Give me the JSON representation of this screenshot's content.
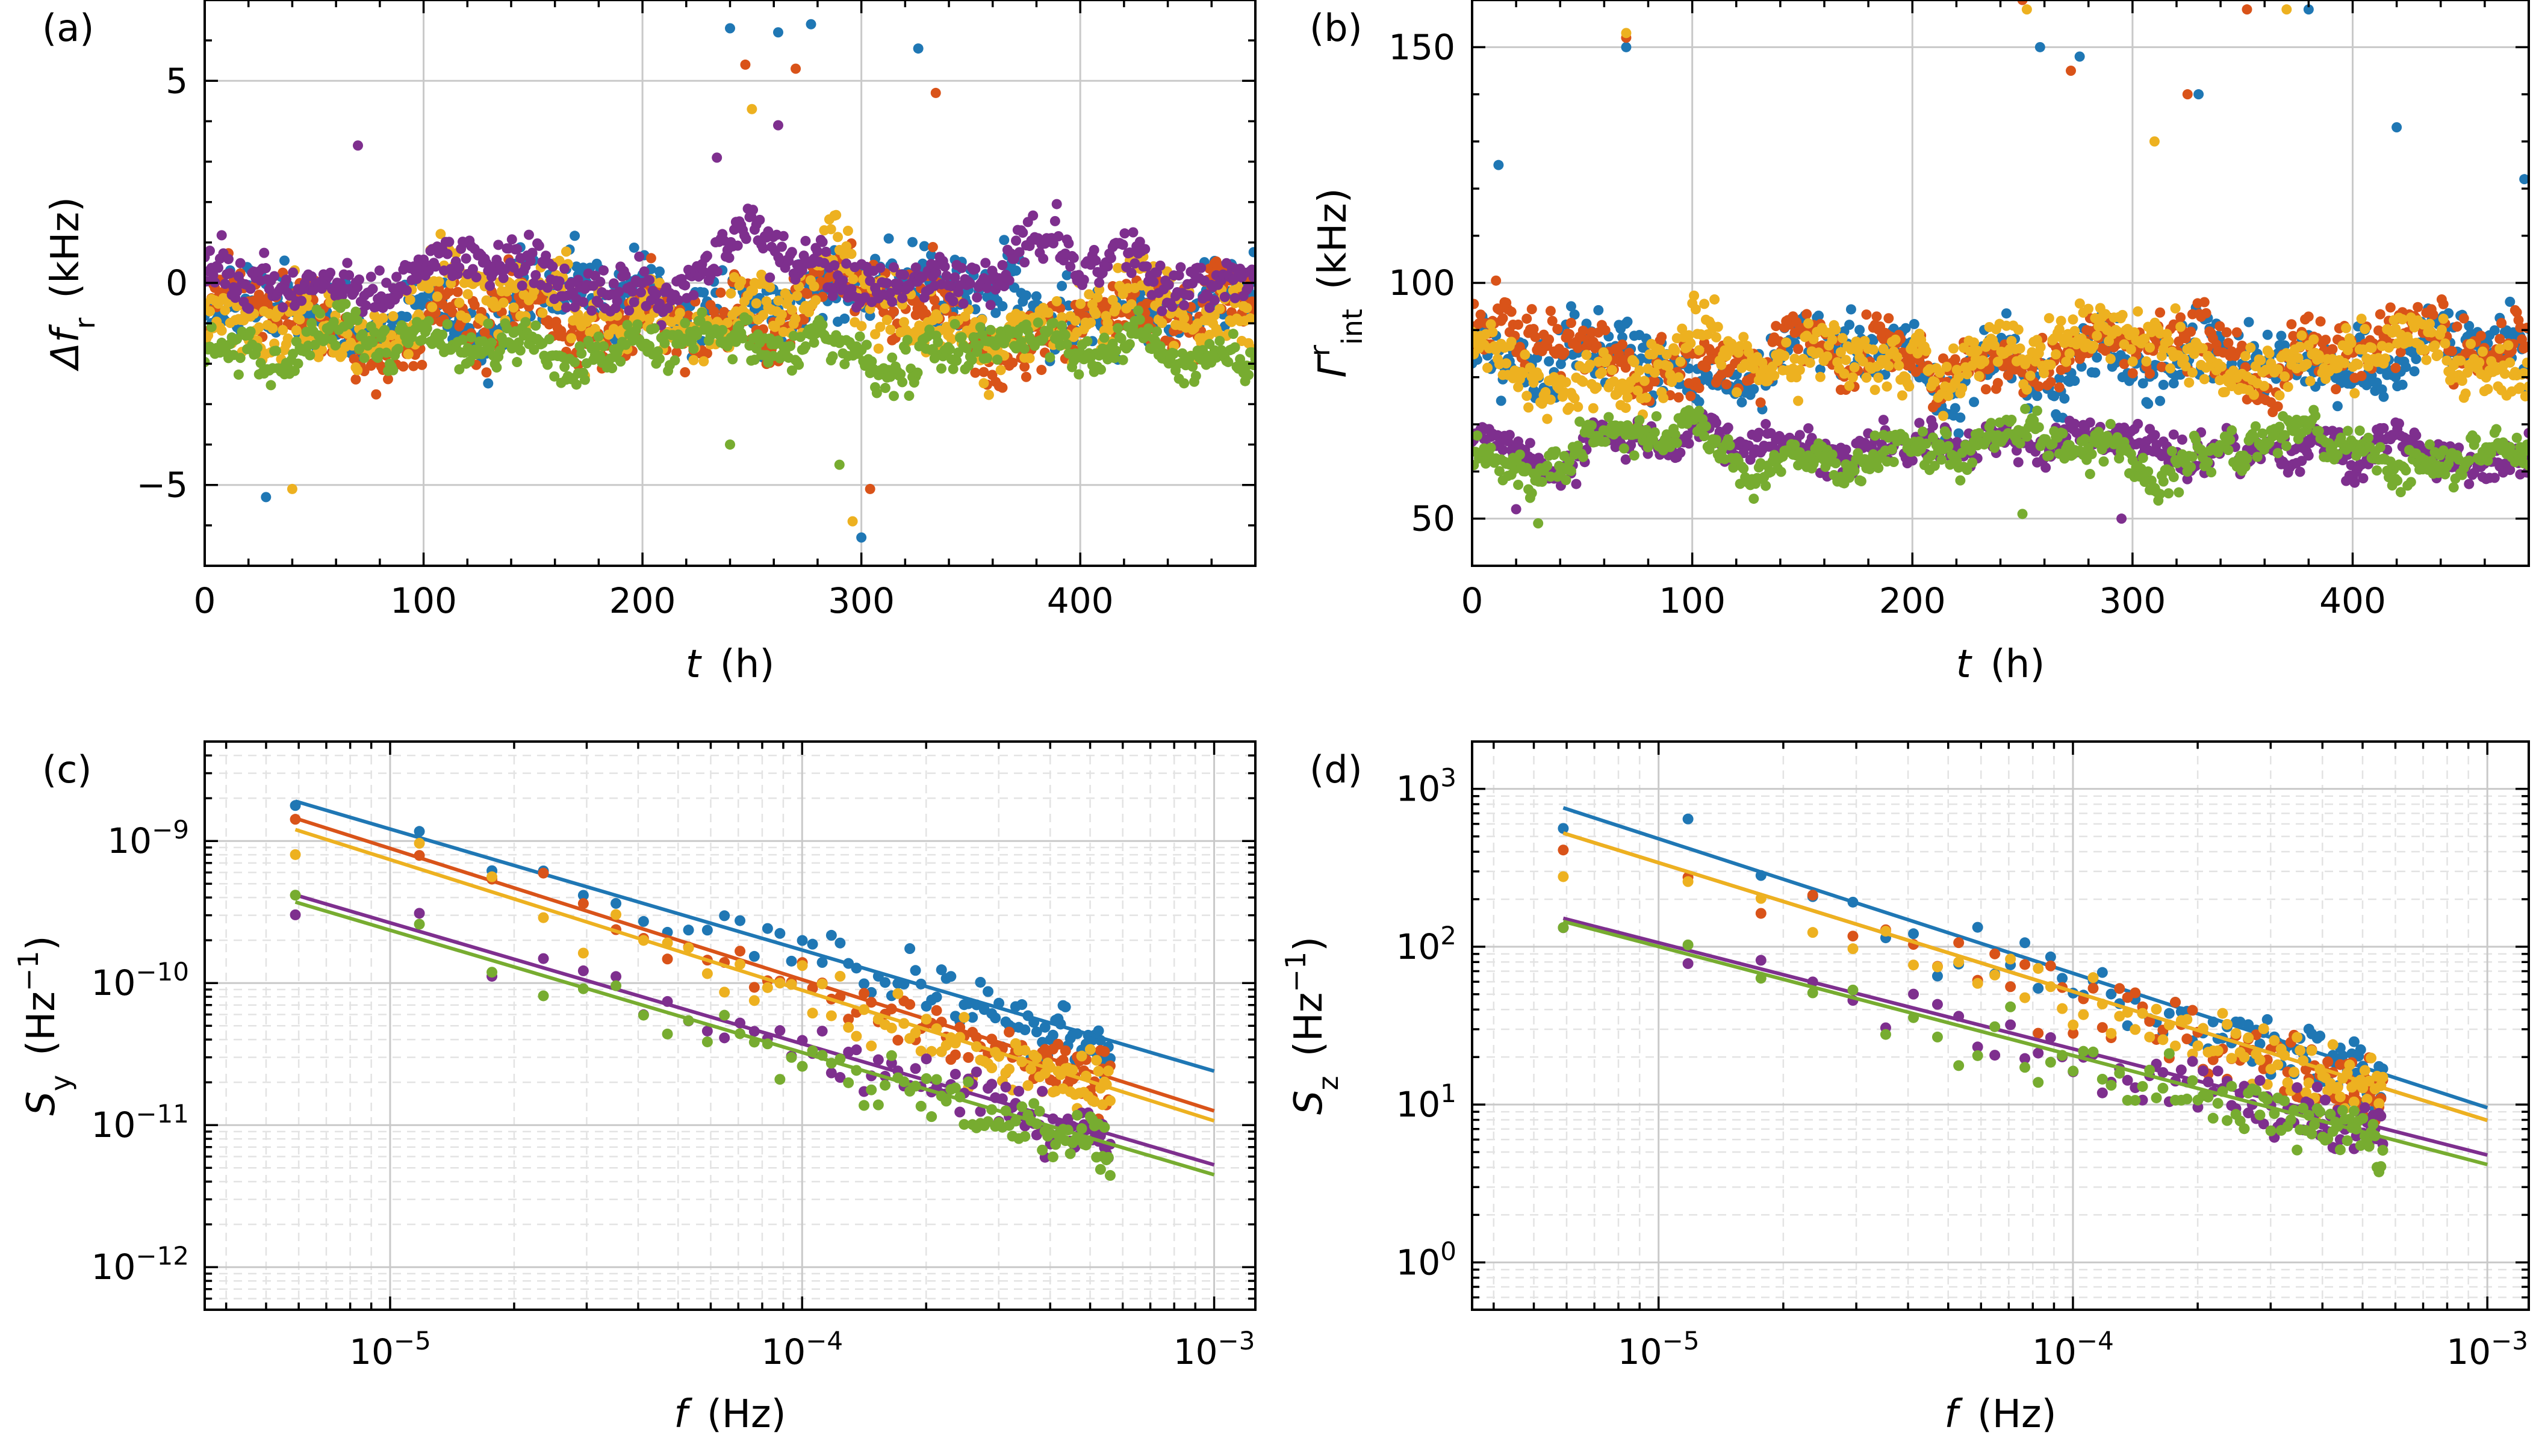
{
  "figure": {
    "panels": [
      "(a)",
      "(b)",
      "(c)",
      "(d)"
    ]
  },
  "colors": {
    "blue": "#1f77b4",
    "red": "#d95319",
    "yellow": "#edb120",
    "purple": "#7e2f8e",
    "green": "#77ac30"
  },
  "chart_data": [
    {
      "id": "a",
      "type": "scatter",
      "panel_label": "(a)",
      "xlabel": "t",
      "xunit": "(h)",
      "ylabel": "Δf",
      "ylabel_sub": "r",
      "yunit": "(kHz)",
      "xlim": [
        0,
        480
      ],
      "ylim": [
        -7,
        7
      ],
      "xticks": [
        0,
        100,
        200,
        300,
        400
      ],
      "xtick_labels": [
        "0",
        "100",
        "200",
        "300",
        "400"
      ],
      "yticks": [
        -5,
        0,
        5
      ],
      "ytick_labels": [
        "−5",
        "0",
        "5"
      ],
      "grid": true,
      "series": [
        {
          "name": "blue",
          "color": "#1f77b4",
          "center": -0.6,
          "spread": 1.3,
          "spikes": [
            [
              240,
              6.3
            ],
            [
              262,
              6.2
            ],
            [
              277,
              6.4
            ],
            [
              300,
              -6.3
            ],
            [
              326,
              5.8
            ],
            [
              28,
              -5.3
            ]
          ]
        },
        {
          "name": "red",
          "color": "#d95319",
          "center": -0.7,
          "spread": 1.2,
          "spikes": [
            [
              247,
              5.4
            ],
            [
              270,
              5.3
            ],
            [
              304,
              -5.1
            ],
            [
              334,
              4.7
            ]
          ]
        },
        {
          "name": "yellow",
          "color": "#edb120",
          "center": -0.8,
          "spread": 1.2,
          "spikes": [
            [
              250,
              4.3
            ],
            [
              296,
              -5.9
            ],
            [
              40,
              -5.1
            ]
          ]
        },
        {
          "name": "purple",
          "color": "#7e2f8e",
          "center": 0.4,
          "spread": 0.9,
          "spikes": [
            [
              70,
              3.4
            ],
            [
              234,
              3.1
            ],
            [
              262,
              3.9
            ]
          ]
        },
        {
          "name": "green",
          "color": "#77ac30",
          "center": -1.6,
          "spread": 0.8,
          "spikes": [
            [
              240,
              -4.0
            ],
            [
              290,
              -4.5
            ]
          ]
        }
      ]
    },
    {
      "id": "b",
      "type": "scatter",
      "panel_label": "(b)",
      "xlabel": "t",
      "xunit": "(h)",
      "ylabel": "Γ",
      "ylabel_sup": "r",
      "ylabel_sub": "int",
      "yunit": "(kHz)",
      "xlim": [
        0,
        480
      ],
      "ylim": [
        40,
        160
      ],
      "xticks": [
        0,
        100,
        200,
        300,
        400
      ],
      "xtick_labels": [
        "0",
        "100",
        "200",
        "300",
        "400"
      ],
      "yticks": [
        50,
        100,
        150
      ],
      "ytick_labels": [
        "50",
        "100",
        "150"
      ],
      "grid": true,
      "series": [
        {
          "name": "blue",
          "color": "#1f77b4",
          "center": 85,
          "spread": 10,
          "spikes": [
            [
              12,
              125
            ],
            [
              70,
              150
            ],
            [
              258,
              150
            ],
            [
              276,
              148
            ],
            [
              330,
              140
            ],
            [
              380,
              158
            ],
            [
              420,
              133
            ],
            [
              478,
              122
            ]
          ]
        },
        {
          "name": "red",
          "color": "#d95319",
          "center": 84,
          "spread": 9,
          "spikes": [
            [
              70,
              152
            ],
            [
              250,
              160
            ],
            [
              272,
              145
            ],
            [
              325,
              140
            ],
            [
              352,
              158
            ]
          ]
        },
        {
          "name": "yellow",
          "color": "#edb120",
          "center": 83,
          "spread": 9,
          "spikes": [
            [
              70,
              153
            ],
            [
              252,
              158
            ],
            [
              310,
              130
            ],
            [
              370,
              158
            ]
          ]
        },
        {
          "name": "purple",
          "color": "#7e2f8e",
          "center": 65,
          "spread": 6,
          "spikes": [
            [
              20,
              52
            ],
            [
              295,
              50
            ]
          ]
        },
        {
          "name": "green",
          "color": "#77ac30",
          "center": 64,
          "spread": 6,
          "spikes": [
            [
              30,
              49
            ],
            [
              250,
              51
            ]
          ]
        }
      ]
    },
    {
      "id": "c",
      "type": "scatter",
      "panel_label": "(c)",
      "xlabel": "f",
      "xunit": "(Hz)",
      "ylabel": "S",
      "ylabel_sub": "y",
      "yunit": "(Hz",
      "yunit_sup": "−1",
      "yunit_close": ")",
      "xscale": "log",
      "yscale": "log",
      "xlim_log10": [
        -5.45,
        -2.9
      ],
      "ylim_log10": [
        -12.3,
        -8.3
      ],
      "xticks_log10": [
        -5,
        -4,
        -3
      ],
      "xtick_mantissa": [
        "10",
        "10",
        "10"
      ],
      "xtick_exponents": [
        "−5",
        "−4",
        "−3"
      ],
      "yticks_log10": [
        -12,
        -11,
        -10,
        -9
      ],
      "ytick_mantissa": [
        "10",
        "10",
        "10",
        "10"
      ],
      "ytick_exponents": [
        "−12",
        "−11",
        "−10",
        "−9"
      ],
      "grid": true,
      "fit_range_log10": [
        -5.23,
        -3.0
      ],
      "series": [
        {
          "name": "blue",
          "color": "#1f77b4",
          "fit_start": -8.72,
          "fit_end": -10.62,
          "noise": 0.16
        },
        {
          "name": "red",
          "color": "#d95319",
          "fit_start": -8.84,
          "fit_end": -10.9,
          "noise": 0.16
        },
        {
          "name": "yellow",
          "color": "#edb120",
          "fit_start": -8.92,
          "fit_end": -10.97,
          "noise": 0.16
        },
        {
          "name": "purple",
          "color": "#7e2f8e",
          "fit_start": -9.38,
          "fit_end": -11.28,
          "noise": 0.14
        },
        {
          "name": "green",
          "color": "#77ac30",
          "fit_start": -9.43,
          "fit_end": -11.35,
          "noise": 0.14
        }
      ]
    },
    {
      "id": "d",
      "type": "scatter",
      "panel_label": "(d)",
      "xlabel": "f",
      "xunit": "(Hz)",
      "ylabel": "S",
      "ylabel_sub": "z",
      "yunit": "(Hz",
      "yunit_sup": "−1",
      "yunit_close": ")",
      "xscale": "log",
      "yscale": "log",
      "xlim_log10": [
        -5.45,
        -2.9
      ],
      "ylim_log10": [
        -0.3,
        3.3
      ],
      "xticks_log10": [
        -5,
        -4,
        -3
      ],
      "xtick_mantissa": [
        "10",
        "10",
        "10"
      ],
      "xtick_exponents": [
        "−5",
        "−4",
        "−3"
      ],
      "yticks_log10": [
        0,
        1,
        2,
        3
      ],
      "ytick_mantissa": [
        "10",
        "10",
        "10",
        "10"
      ],
      "ytick_exponents": [
        "0",
        "1",
        "2",
        "3"
      ],
      "grid": true,
      "fit_range_log10": [
        -5.23,
        -3.0
      ],
      "series": [
        {
          "name": "blue",
          "color": "#1f77b4",
          "fit_start": 2.88,
          "fit_end": 0.98,
          "noise": 0.16
        },
        {
          "name": "red",
          "color": "#d95319",
          "fit_start": 2.72,
          "fit_end": 0.9,
          "noise": 0.16
        },
        {
          "name": "yellow",
          "color": "#edb120",
          "fit_start": 2.72,
          "fit_end": 0.9,
          "noise": 0.16
        },
        {
          "name": "purple",
          "color": "#7e2f8e",
          "fit_start": 2.18,
          "fit_end": 0.68,
          "noise": 0.14
        },
        {
          "name": "green",
          "color": "#77ac30",
          "fit_start": 2.16,
          "fit_end": 0.62,
          "noise": 0.14
        }
      ]
    }
  ]
}
